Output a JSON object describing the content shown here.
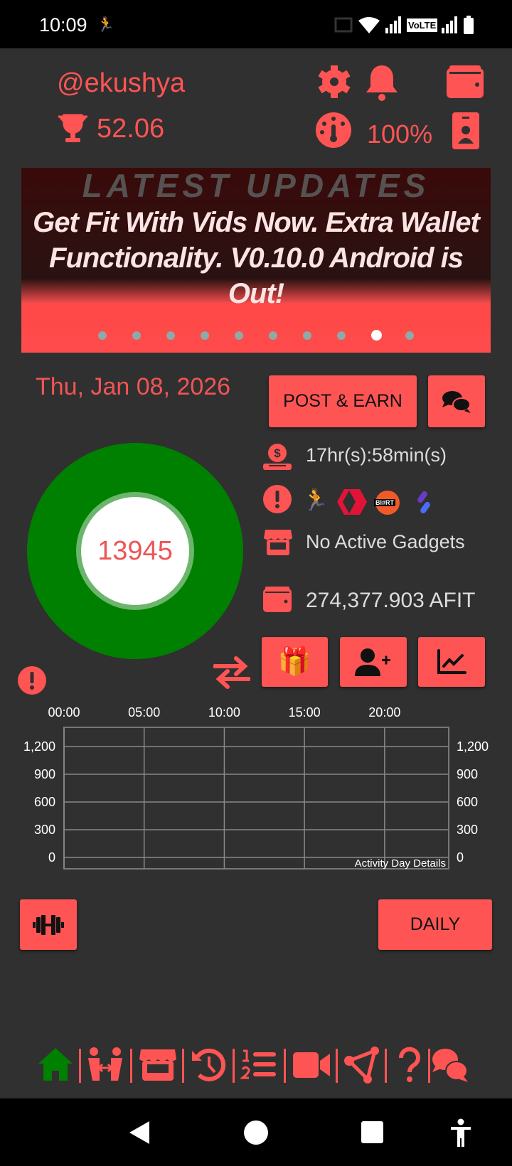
{
  "status_bar": {
    "time": "10:09",
    "network_label": "VoLTE"
  },
  "header": {
    "username": "@ekushya",
    "trophy_score": "52.06",
    "battery_percent": "100%"
  },
  "banner": {
    "title": "Get Fit With Vids Now. Extra Wallet Functionality. V0.10.0 Android is Out!",
    "background_caption": "LATEST UPDATES",
    "slide_count": 10,
    "active_slide": 9
  },
  "date": "Thu, Jan 08, 2026",
  "buttons": {
    "post_earn": "POST & EARN",
    "daily": "DAILY"
  },
  "steps": {
    "value": "13945"
  },
  "info": {
    "timer": "17hr(s):58min(s)",
    "gadgets": "No Active Gadgets",
    "wallet_balance": "274,377.903 AFIT",
    "partner_badge": "BI#RT"
  },
  "colors": {
    "accent": "#ff5454",
    "background": "#303030",
    "ring": "#008000",
    "active_nav": "#008000"
  },
  "chart_data": {
    "type": "line",
    "title": "",
    "annotation": "Activity Day Details",
    "x_ticks": [
      "00:00",
      "05:00",
      "10:00",
      "15:00",
      "20:00"
    ],
    "xlim": [
      "00:00",
      "24:00"
    ],
    "y_ticks": [
      "1,200",
      "900",
      "600",
      "300",
      "0"
    ],
    "ylim": [
      0,
      1200
    ],
    "grid": true,
    "series": []
  },
  "bottom_nav": [
    {
      "icon": "home-icon",
      "active": true
    },
    {
      "icon": "exchange-people-icon"
    },
    {
      "icon": "store-icon"
    },
    {
      "icon": "history-icon"
    },
    {
      "icon": "ordered-list-icon"
    },
    {
      "icon": "video-icon"
    },
    {
      "icon": "share-nodes-icon"
    },
    {
      "icon": "question-icon"
    },
    {
      "icon": "chat-icon"
    }
  ]
}
